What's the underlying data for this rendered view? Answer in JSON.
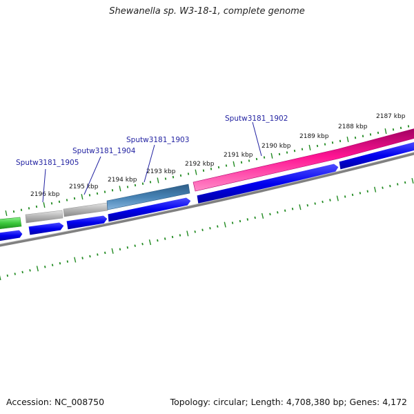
{
  "title": "Shewanella sp. W3-18-1, complete genome",
  "footer": {
    "accession_label": "Accession: NC_008750",
    "summary": "Topology: circular; Length: 4,708,380 bp; Genes: 4,172"
  },
  "ruler": {
    "kbp_labels": [
      "2196 kbp",
      "2195 kbp",
      "2194 kbp",
      "2193 kbp",
      "2192 kbp",
      "2191 kbp",
      "2190 kbp",
      "2189 kbp",
      "2188 kbp",
      "2187 kbp"
    ]
  },
  "genes": [
    {
      "name": "Sputw3181_1905"
    },
    {
      "name": "Sputw3181_1904"
    },
    {
      "name": "Sputw3181_1903"
    },
    {
      "name": "Sputw3181_1902"
    }
  ],
  "colors": {
    "green": "#3cc83c",
    "gray": "#b4b4b4",
    "steelblue": "#4682b4",
    "pink": "#ff1493",
    "blue": "#0000ee",
    "backbone": "#808080",
    "tick": "#228b22",
    "label": "#1f1fa0"
  }
}
